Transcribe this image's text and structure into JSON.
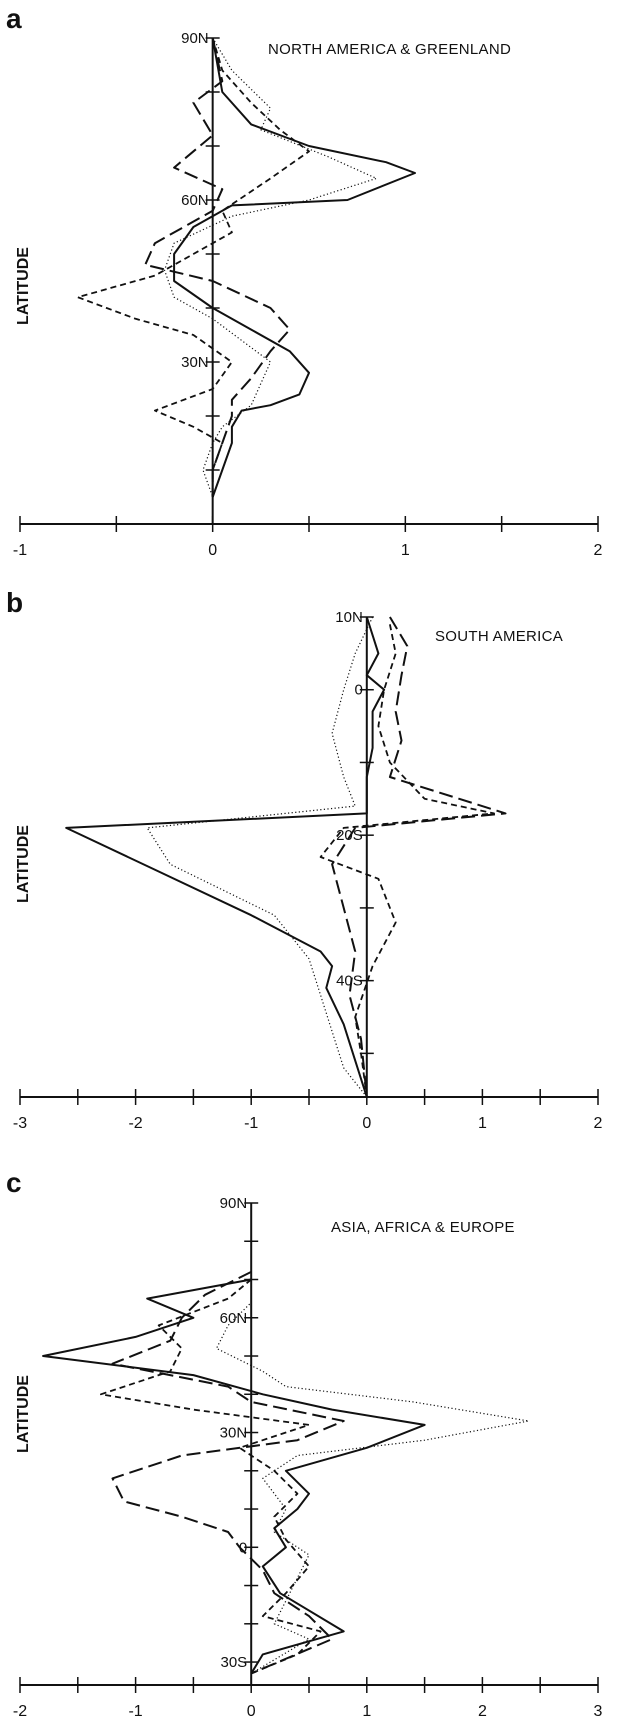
{
  "chart_data": [
    {
      "type": "line",
      "panel": "a",
      "title": "NORTH AMERICA & GREENLAND",
      "ylabel": "LATITUDE",
      "xlabel": "",
      "xlim": [
        -1,
        2
      ],
      "xticks": [
        "-1",
        "0",
        "1",
        "2"
      ],
      "ylim": [
        0,
        90
      ],
      "lat_labels": [
        {
          "lat": 90,
          "label": "90N"
        },
        {
          "lat": 60,
          "label": "60N"
        },
        {
          "lat": 30,
          "label": "30N"
        }
      ],
      "series": [
        {
          "style": "solid",
          "points": [
            [
              0,
              90
            ],
            [
              0.05,
              80
            ],
            [
              0.2,
              74
            ],
            [
              0.5,
              70
            ],
            [
              0.9,
              67
            ],
            [
              1.05,
              65
            ],
            [
              0.7,
              60
            ],
            [
              0.1,
              59
            ],
            [
              -0.1,
              55
            ],
            [
              -0.2,
              50
            ],
            [
              -0.2,
              45
            ],
            [
              0,
              40
            ],
            [
              0.2,
              36
            ],
            [
              0.4,
              32
            ],
            [
              0.5,
              28
            ],
            [
              0.45,
              24
            ],
            [
              0.3,
              22
            ],
            [
              0.15,
              21
            ],
            [
              0.1,
              18
            ],
            [
              0.1,
              15
            ],
            [
              0.05,
              10
            ],
            [
              0,
              5
            ]
          ]
        },
        {
          "style": "long-dash",
          "points": [
            [
              0,
              90
            ],
            [
              0.05,
              82
            ],
            [
              -0.1,
              78
            ],
            [
              0,
              72
            ],
            [
              -0.2,
              66
            ],
            [
              0.05,
              62
            ],
            [
              0,
              58
            ],
            [
              -0.3,
              52
            ],
            [
              -0.35,
              48
            ],
            [
              0,
              45
            ],
            [
              0.3,
              40
            ],
            [
              0.4,
              36
            ],
            [
              0.3,
              32
            ],
            [
              0.2,
              27
            ],
            [
              0.1,
              23
            ],
            [
              0.1,
              20
            ],
            [
              0.05,
              15
            ],
            [
              0,
              10
            ],
            [
              0,
              5
            ]
          ]
        },
        {
          "style": "short-dash",
          "points": [
            [
              0,
              90
            ],
            [
              0.05,
              84
            ],
            [
              0.2,
              78
            ],
            [
              0.35,
              73
            ],
            [
              0.5,
              69
            ],
            [
              0.3,
              64
            ],
            [
              0.05,
              58
            ],
            [
              0.1,
              54
            ],
            [
              0,
              52
            ],
            [
              -0.3,
              46
            ],
            [
              -0.7,
              42
            ],
            [
              -0.4,
              38
            ],
            [
              -0.1,
              35
            ],
            [
              0.1,
              30
            ],
            [
              0,
              25
            ],
            [
              -0.3,
              21
            ],
            [
              -0.1,
              18
            ],
            [
              0.05,
              15
            ],
            [
              0,
              10
            ],
            [
              0,
              5
            ]
          ]
        },
        {
          "style": "dotted",
          "points": [
            [
              0,
              90
            ],
            [
              0.1,
              84
            ],
            [
              0.3,
              77
            ],
            [
              0.25,
              73
            ],
            [
              0.6,
              68
            ],
            [
              0.85,
              64
            ],
            [
              0.5,
              60
            ],
            [
              0.1,
              57
            ],
            [
              -0.2,
              52
            ],
            [
              -0.25,
              47
            ],
            [
              -0.2,
              42
            ],
            [
              0,
              38
            ],
            [
              0.15,
              34
            ],
            [
              0.3,
              30
            ],
            [
              0.25,
              26
            ],
            [
              0.2,
              22
            ],
            [
              0.05,
              18
            ],
            [
              0,
              15
            ],
            [
              -0.05,
              10
            ],
            [
              0,
              5
            ]
          ]
        }
      ]
    },
    {
      "type": "line",
      "panel": "b",
      "title": "SOUTH AMERICA",
      "ylabel": "LATITUDE",
      "xlabel": "",
      "xlim": [
        -3,
        2
      ],
      "xticks": [
        "-3",
        "-2",
        "-1",
        "0",
        "1",
        "2"
      ],
      "ylim": [
        -56,
        10
      ],
      "lat_labels": [
        {
          "lat": 10,
          "label": "10N"
        },
        {
          "lat": 0,
          "label": "0"
        },
        {
          "lat": -20,
          "label": "20S"
        },
        {
          "lat": -40,
          "label": "40S"
        }
      ],
      "series": [
        {
          "style": "solid",
          "points": [
            [
              0,
              10
            ],
            [
              0.1,
              5
            ],
            [
              0,
              2
            ],
            [
              0.15,
              0
            ],
            [
              0.05,
              -3
            ],
            [
              0.05,
              -8
            ],
            [
              0,
              -12
            ],
            [
              0,
              -17
            ],
            [
              -2.6,
              -19
            ],
            [
              -1.8,
              -25
            ],
            [
              -1,
              -31
            ],
            [
              -0.4,
              -36
            ],
            [
              -0.3,
              -38
            ],
            [
              -0.35,
              -41
            ],
            [
              -0.2,
              -46
            ],
            [
              -0.1,
              -51
            ],
            [
              0,
              -56
            ]
          ]
        },
        {
          "style": "long-dash",
          "points": [
            [
              0.2,
              10
            ],
            [
              0.35,
              6
            ],
            [
              0.3,
              2
            ],
            [
              0.25,
              -3
            ],
            [
              0.3,
              -7
            ],
            [
              0.2,
              -12
            ],
            [
              1.2,
              -17
            ],
            [
              -0.1,
              -19
            ],
            [
              -0.3,
              -24
            ],
            [
              -0.2,
              -30
            ],
            [
              -0.1,
              -36
            ],
            [
              -0.15,
              -42
            ],
            [
              -0.05,
              -48
            ],
            [
              0,
              -56
            ]
          ]
        },
        {
          "style": "short-dash",
          "points": [
            [
              0.2,
              9
            ],
            [
              0.25,
              5
            ],
            [
              0.15,
              0
            ],
            [
              0.1,
              -5
            ],
            [
              0.2,
              -10
            ],
            [
              0.5,
              -15
            ],
            [
              1.1,
              -17
            ],
            [
              -0.2,
              -19
            ],
            [
              -0.4,
              -23
            ],
            [
              0.1,
              -26
            ],
            [
              0.25,
              -32
            ],
            [
              0.05,
              -38
            ],
            [
              -0.1,
              -45
            ],
            [
              -0.05,
              -50
            ],
            [
              0,
              -56
            ]
          ]
        },
        {
          "style": "dotted",
          "points": [
            [
              0.05,
              10
            ],
            [
              -0.1,
              5
            ],
            [
              -0.2,
              0
            ],
            [
              -0.3,
              -6
            ],
            [
              -0.2,
              -12
            ],
            [
              -0.1,
              -16
            ],
            [
              -1.9,
              -19
            ],
            [
              -1.7,
              -24
            ],
            [
              -0.8,
              -31
            ],
            [
              -0.5,
              -37
            ],
            [
              -0.4,
              -42
            ],
            [
              -0.3,
              -47
            ],
            [
              -0.2,
              -52
            ],
            [
              0,
              -56
            ]
          ]
        }
      ]
    },
    {
      "type": "line",
      "panel": "c",
      "title": "ASIA, AFRICA & EUROPE",
      "ylabel": "LATITUDE",
      "xlabel": "",
      "xlim": [
        -2,
        3
      ],
      "xticks": [
        "-2",
        "-1",
        "0",
        "1",
        "2",
        "3"
      ],
      "ylim": [
        -36,
        90
      ],
      "lat_labels": [
        {
          "lat": 90,
          "label": "90N"
        },
        {
          "lat": 60,
          "label": "60N"
        },
        {
          "lat": 30,
          "label": "30N"
        },
        {
          "lat": 0,
          "label": "0"
        },
        {
          "lat": -30,
          "label": "30S"
        }
      ],
      "series": [
        {
          "style": "solid",
          "points": [
            [
              0,
              70
            ],
            [
              -0.9,
              65
            ],
            [
              -0.5,
              60
            ],
            [
              -1,
              55
            ],
            [
              -1.8,
              50
            ],
            [
              -0.5,
              45
            ],
            [
              0.1,
              40
            ],
            [
              0.7,
              36
            ],
            [
              1.5,
              32
            ],
            [
              1,
              26
            ],
            [
              0.3,
              20
            ],
            [
              0.5,
              14
            ],
            [
              0.4,
              10
            ],
            [
              0.2,
              5
            ],
            [
              0.3,
              0
            ],
            [
              0.1,
              -5
            ],
            [
              0.25,
              -12
            ],
            [
              0.8,
              -22
            ],
            [
              0.1,
              -28
            ],
            [
              0,
              -33
            ]
          ]
        },
        {
          "style": "long-dash",
          "points": [
            [
              0,
              72
            ],
            [
              -0.4,
              66
            ],
            [
              -0.6,
              60
            ],
            [
              -0.7,
              54
            ],
            [
              -1.2,
              48
            ],
            [
              -0.2,
              42
            ],
            [
              0,
              38
            ],
            [
              0.8,
              33
            ],
            [
              0.4,
              28
            ],
            [
              -0.6,
              24
            ],
            [
              -1.2,
              18
            ],
            [
              -1.1,
              12
            ],
            [
              -0.6,
              8
            ],
            [
              -0.2,
              4
            ],
            [
              -0.1,
              0
            ],
            [
              0.1,
              -6
            ],
            [
              0.2,
              -12
            ],
            [
              0.5,
              -18
            ],
            [
              0.7,
              -24
            ],
            [
              0,
              -33
            ]
          ]
        },
        {
          "style": "short-dash",
          "points": [
            [
              0,
              70
            ],
            [
              -0.2,
              65
            ],
            [
              -0.8,
              58
            ],
            [
              -0.6,
              52
            ],
            [
              -0.7,
              46
            ],
            [
              -1.3,
              40
            ],
            [
              -0.5,
              36
            ],
            [
              0.5,
              32
            ],
            [
              -0.1,
              26
            ],
            [
              0.2,
              20
            ],
            [
              0.4,
              14
            ],
            [
              0.2,
              8
            ],
            [
              0.3,
              2
            ],
            [
              0.5,
              -5
            ],
            [
              0.3,
              -12
            ],
            [
              0.1,
              -18
            ],
            [
              0.6,
              -22
            ],
            [
              0.4,
              -28
            ],
            [
              0,
              -33
            ]
          ]
        },
        {
          "style": "dotted",
          "points": [
            [
              0,
              70
            ],
            [
              0,
              64
            ],
            [
              -0.2,
              58
            ],
            [
              -0.3,
              52
            ],
            [
              0.1,
              46
            ],
            [
              0.3,
              42
            ],
            [
              1.4,
              38
            ],
            [
              2.4,
              33
            ],
            [
              1.5,
              28
            ],
            [
              0.4,
              24
            ],
            [
              0.1,
              18
            ],
            [
              0.3,
              10
            ],
            [
              0.2,
              4
            ],
            [
              0.5,
              -2
            ],
            [
              0.4,
              -8
            ],
            [
              0.3,
              -14
            ],
            [
              0.2,
              -20
            ],
            [
              0.5,
              -24
            ],
            [
              0,
              -33
            ]
          ]
        }
      ]
    }
  ]
}
